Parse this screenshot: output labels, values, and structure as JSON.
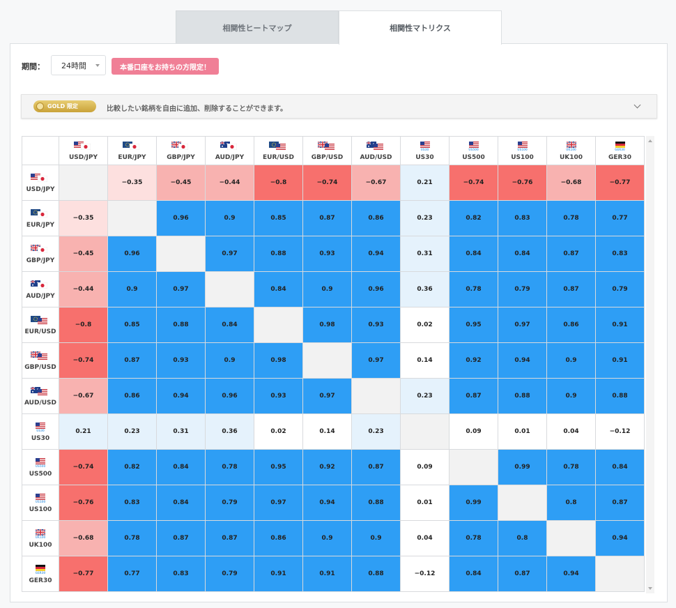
{
  "tabs": [
    {
      "label": "相関性ヒートマップ",
      "active": false
    },
    {
      "label": "相関性マトリクス",
      "active": true
    }
  ],
  "period": {
    "label": "期間：",
    "value": "24時間"
  },
  "badge": "本番口座をお持ちの方限定！",
  "gold_bar": {
    "badge": "GOLD 限定",
    "text": "比較したい銘柄を自由に追加、削除することができます。"
  },
  "colors": {
    "positive": "#2e9ef5",
    "neg_strong": "#f7706d",
    "neg_light": "#f8b2b0",
    "neg_faint": "#fde0df",
    "pos_faint": "#e5f2fc",
    "diag": "#f2f2f2"
  },
  "symbols": [
    {
      "label": "USD/JPY",
      "flags": [
        "us",
        "jp"
      ]
    },
    {
      "label": "EUR/JPY",
      "flags": [
        "eu",
        "jp"
      ]
    },
    {
      "label": "GBP/JPY",
      "flags": [
        "uk",
        "jp"
      ]
    },
    {
      "label": "AUD/JPY",
      "flags": [
        "au",
        "jp"
      ]
    },
    {
      "label": "EUR/USD",
      "flags": [
        "eu",
        "us"
      ]
    },
    {
      "label": "GBP/USD",
      "flags": [
        "uk",
        "us"
      ]
    },
    {
      "label": "AUD/USD",
      "flags": [
        "au",
        "us"
      ]
    },
    {
      "label": "US30",
      "flags": [
        "us"
      ],
      "sub": "US30"
    },
    {
      "label": "US500",
      "flags": [
        "us"
      ],
      "sub": "US500"
    },
    {
      "label": "US100",
      "flags": [
        "us"
      ],
      "sub": "US100"
    },
    {
      "label": "UK100",
      "flags": [
        "uk"
      ],
      "sub": "UK100"
    },
    {
      "label": "GER30",
      "flags": [
        "de"
      ],
      "sub": "GER30"
    }
  ],
  "matrix": [
    [
      null,
      -0.35,
      -0.45,
      -0.44,
      -0.8,
      -0.74,
      -0.67,
      0.21,
      -0.74,
      -0.76,
      -0.68,
      -0.77
    ],
    [
      -0.35,
      null,
      0.96,
      0.9,
      0.85,
      0.87,
      0.86,
      0.23,
      0.82,
      0.83,
      0.78,
      0.77
    ],
    [
      -0.45,
      0.96,
      null,
      0.97,
      0.88,
      0.93,
      0.94,
      0.31,
      0.84,
      0.84,
      0.87,
      0.83
    ],
    [
      -0.44,
      0.9,
      0.97,
      null,
      0.84,
      0.9,
      0.96,
      0.36,
      0.78,
      0.79,
      0.87,
      0.79
    ],
    [
      -0.8,
      0.85,
      0.88,
      0.84,
      null,
      0.98,
      0.93,
      0.02,
      0.95,
      0.97,
      0.86,
      0.91
    ],
    [
      -0.74,
      0.87,
      0.93,
      0.9,
      0.98,
      null,
      0.97,
      0.14,
      0.92,
      0.94,
      0.9,
      0.91
    ],
    [
      -0.67,
      0.86,
      0.94,
      0.96,
      0.93,
      0.97,
      null,
      0.23,
      0.87,
      0.88,
      0.9,
      0.88
    ],
    [
      0.21,
      0.23,
      0.31,
      0.36,
      0.02,
      0.14,
      0.23,
      null,
      0.09,
      0.01,
      0.04,
      -0.12
    ],
    [
      -0.74,
      0.82,
      0.84,
      0.78,
      0.95,
      0.92,
      0.87,
      0.09,
      null,
      0.99,
      0.78,
      0.84
    ],
    [
      -0.76,
      0.83,
      0.84,
      0.79,
      0.97,
      0.94,
      0.88,
      0.01,
      0.99,
      null,
      0.8,
      0.87
    ],
    [
      -0.68,
      0.78,
      0.87,
      0.87,
      0.86,
      0.9,
      0.9,
      0.04,
      0.78,
      0.8,
      null,
      0.94
    ],
    [
      -0.77,
      0.77,
      0.83,
      0.79,
      0.91,
      0.91,
      0.88,
      -0.12,
      0.84,
      0.87,
      0.94,
      null
    ]
  ]
}
